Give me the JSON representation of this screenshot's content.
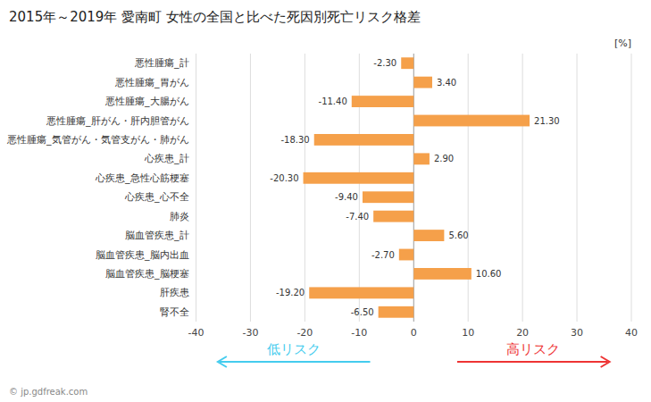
{
  "chart_data": {
    "type": "bar",
    "orientation": "horizontal",
    "title": "2015年～2019年 愛南町 女性の全国と比べた死因別死亡リスク格差",
    "xlabel": "[%]",
    "categories": [
      "悪性腫瘍_計",
      "悪性腫瘍_胃がん",
      "悪性腫瘍_大腸がん",
      "悪性腫瘍_肝がん・肝内胆管がん",
      "悪性腫瘍_気管がん・気管支がん・肺がん",
      "心疾患_計",
      "心疾患_急性心筋梗塞",
      "心疾患_心不全",
      "肺炎",
      "脳血管疾患_計",
      "脳血管疾患_脳内出血",
      "脳血管疾患_脳梗塞",
      "肝疾患",
      "腎不全"
    ],
    "values": [
      -2.3,
      3.4,
      -11.4,
      21.3,
      -18.3,
      2.9,
      -20.3,
      -9.4,
      -7.4,
      5.6,
      -2.7,
      10.6,
      -19.2,
      -6.5
    ],
    "value_labels": [
      "-2.30",
      "3.40",
      "-11.40",
      "21.30",
      "-18.30",
      "2.90",
      "-20.30",
      "-9.40",
      "-7.40",
      "5.60",
      "-2.70",
      "10.60",
      "-19.20",
      "-6.50"
    ],
    "data_labels": true,
    "color": "#F5A04A",
    "xlim": [
      -40,
      40
    ],
    "xticks": [
      -40,
      -30,
      -20,
      -10,
      0,
      10,
      20,
      30,
      40
    ],
    "grid": true,
    "annotations": [
      {
        "text": "© jp.gdfreak.com"
      },
      {
        "text": "低リスク",
        "color": "#44CCEE"
      },
      {
        "text": "高リスク",
        "color": "#EE3333"
      }
    ]
  }
}
